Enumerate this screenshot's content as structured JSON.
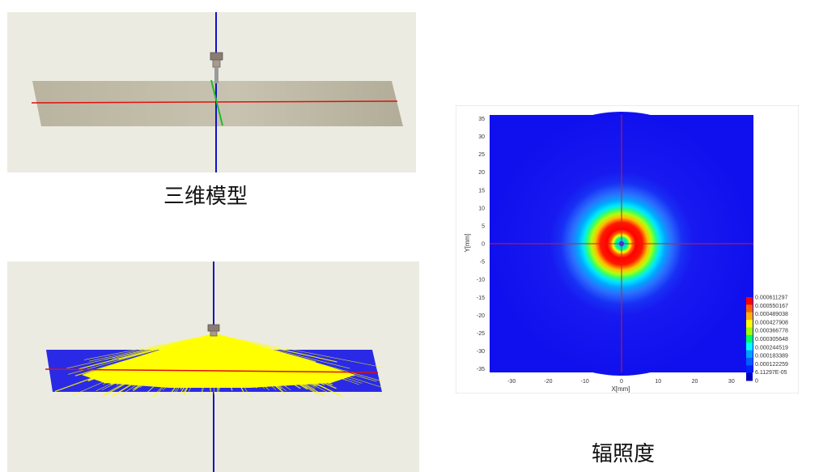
{
  "captions": {
    "model": "三维模型",
    "irradiance": "辐照度"
  },
  "colors": {
    "panel_bg": "#ecebe2",
    "plane_gray": "#bdb8a6",
    "plane_blue": "#2a2ae6",
    "rays": "#ffff00",
    "axis_red": "#e01010",
    "axis_blue": "#1010cc",
    "axis_green": "#22bb22"
  },
  "icons": [
    "led-source-icon"
  ],
  "chart_data": {
    "type": "heatmap",
    "title": "",
    "xlabel": "X[mm]",
    "ylabel": "Y[mm]",
    "xlim": [
      -36,
      36
    ],
    "ylim": [
      -36,
      36
    ],
    "xticks": [
      -30,
      -20,
      -10,
      0,
      10,
      20,
      30
    ],
    "yticks": [
      35,
      30,
      25,
      20,
      15,
      10,
      5,
      0,
      -5,
      -10,
      -15,
      -20,
      -25,
      -30,
      -35
    ],
    "crosshair": [
      0,
      0
    ],
    "peak_radius_mm": 6,
    "peak_value": 0.000611297,
    "center_value": 6.11297e-05,
    "falloff_outer_radius_mm": 20,
    "colorbar_labels": [
      "0.000611297",
      "0.000550167",
      "0.000489038",
      "0.000427908",
      "0.000366778",
      "0.000305648",
      "0.000244519",
      "0.000183389",
      "0.000122259",
      "6.11297E-05",
      "0"
    ],
    "colormap": [
      "#ff0000",
      "#ff6000",
      "#ffb000",
      "#ffff00",
      "#a0ff00",
      "#00ff60",
      "#00ffff",
      "#00a0ff",
      "#0060ff",
      "#0020ff",
      "#0000c0"
    ]
  }
}
